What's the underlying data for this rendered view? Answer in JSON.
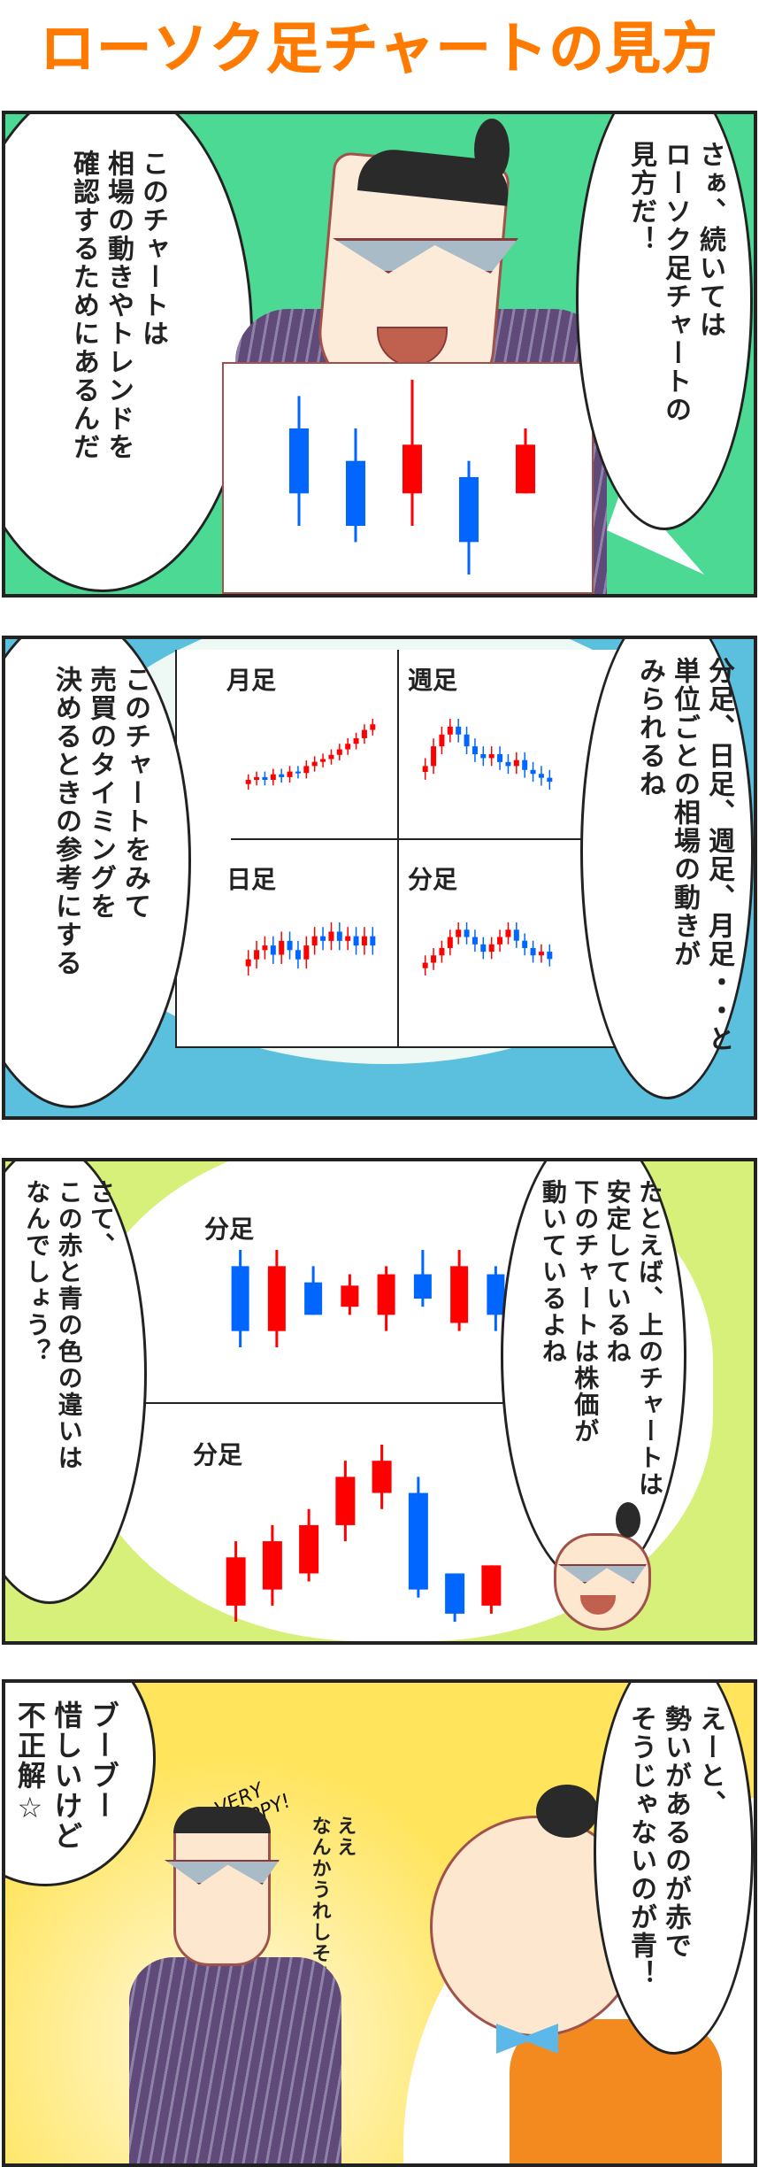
{
  "title": "ローソク足チャートの見方",
  "colors": {
    "title": "#ff7a00",
    "up": "#ff0000",
    "down": "#0066ff",
    "panel1_bg": "#4cd994",
    "panel2_bg": "#5bc0de",
    "panel3_bg": "#d6f07a",
    "panel4_bg": "#ffe45c"
  },
  "panels": [
    {
      "right_bubble": "さぁ、続いては\nローソク足チャートの\n見方だ！",
      "left_bubble": "このチャートは\n相場の動きやトレンドを\n確認するためにあるんだ",
      "board_candles": [
        {
          "dir": "down",
          "o": 8,
          "c": 4,
          "h": 10,
          "l": 2
        },
        {
          "dir": "down",
          "o": 6,
          "c": 2,
          "h": 8,
          "l": 1
        },
        {
          "dir": "up",
          "o": 4,
          "c": 7,
          "h": 11,
          "l": 2
        },
        {
          "dir": "down",
          "o": 5,
          "c": 1,
          "h": 6,
          "l": -1
        },
        {
          "dir": "up",
          "o": 4,
          "c": 7,
          "h": 8,
          "l": 4
        }
      ]
    },
    {
      "right_bubble": "分足、日足、週足、月足・・と\n単位ごとの相場の動きが\nみられるね",
      "left_bubble": "このチャートをみて\n売買のタイミングを\n決めるときの参考にする",
      "charts": [
        {
          "label": "月足",
          "closes": [
            3,
            3.2,
            3,
            3.4,
            3.2,
            3.6,
            3.5,
            4,
            4.3,
            4.5,
            4.8,
            5.2,
            5.6,
            6,
            6.6,
            7
          ]
        },
        {
          "label": "週足",
          "closes": [
            4,
            5,
            5.6,
            6,
            5.6,
            5,
            4.6,
            4.4,
            4.6,
            4.2,
            4,
            4.3,
            3.8,
            3.6,
            3.4,
            3.2
          ]
        },
        {
          "label": "日足",
          "closes": [
            4,
            4.4,
            4.6,
            4.2,
            4.8,
            4.4,
            4,
            4.6,
            5,
            4.8,
            5.2,
            4.8,
            5,
            4.6,
            5,
            4.6
          ]
        },
        {
          "label": "分足",
          "closes": [
            4,
            4.4,
            4.8,
            5.4,
            5.8,
            5.4,
            5,
            4.6,
            5,
            5.4,
            5.8,
            5.2,
            4.8,
            4.4,
            4.6,
            4.2
          ]
        }
      ]
    },
    {
      "right_bubble": "たとえば、上のチャートは\n安定しているね\n下のチャートは株価が\n動いているよね",
      "left_bubble": "さて、\nこの赤と青の色の違いは\nなんでしょう？",
      "top_chart": {
        "label": "分足",
        "candles": [
          {
            "dir": "down",
            "o": 6,
            "c": 2,
            "h": 7,
            "l": 1
          },
          {
            "dir": "up",
            "o": 2,
            "c": 6,
            "h": 7,
            "l": 1
          },
          {
            "dir": "down",
            "o": 5,
            "c": 3,
            "h": 6,
            "l": 3
          },
          {
            "dir": "up",
            "o": 3.5,
            "c": 4.8,
            "h": 5.5,
            "l": 3
          },
          {
            "dir": "up",
            "o": 3,
            "c": 5.5,
            "h": 6,
            "l": 2
          },
          {
            "dir": "down",
            "o": 5.5,
            "c": 4,
            "h": 7,
            "l": 3.5
          },
          {
            "dir": "up",
            "o": 2.5,
            "c": 6,
            "h": 7,
            "l": 2
          },
          {
            "dir": "down",
            "o": 5.5,
            "c": 3,
            "h": 6,
            "l": 2
          }
        ]
      },
      "bottom_chart": {
        "label": "分足",
        "candles": [
          {
            "dir": "up",
            "o": 1,
            "c": 4,
            "h": 5,
            "l": 0
          },
          {
            "dir": "up",
            "o": 2,
            "c": 5,
            "h": 6,
            "l": 1
          },
          {
            "dir": "up",
            "o": 3,
            "c": 6,
            "h": 7,
            "l": 2.5
          },
          {
            "dir": "up",
            "o": 6,
            "c": 9,
            "h": 10,
            "l": 5
          },
          {
            "dir": "up",
            "o": 8,
            "c": 10,
            "h": 11,
            "l": 7
          },
          {
            "dir": "down",
            "o": 8,
            "c": 2,
            "h": 9,
            "l": 1.5
          },
          {
            "dir": "down",
            "o": 3,
            "c": 0.5,
            "h": 3,
            "l": 0
          },
          {
            "dir": "up",
            "o": 1,
            "c": 3.5,
            "h": 3.5,
            "l": 0.5
          }
        ]
      }
    },
    {
      "right_bubble": "えーと、\n勢いがあるのが赤で\nそうじゃないのが青！",
      "left_text": "ブーブー\n惜しいけど\n不正解☆",
      "sfx_happy": "VERY\nHAPPY!",
      "sfx_whisper": "ええ\nなんかうれしそう"
    }
  ]
}
